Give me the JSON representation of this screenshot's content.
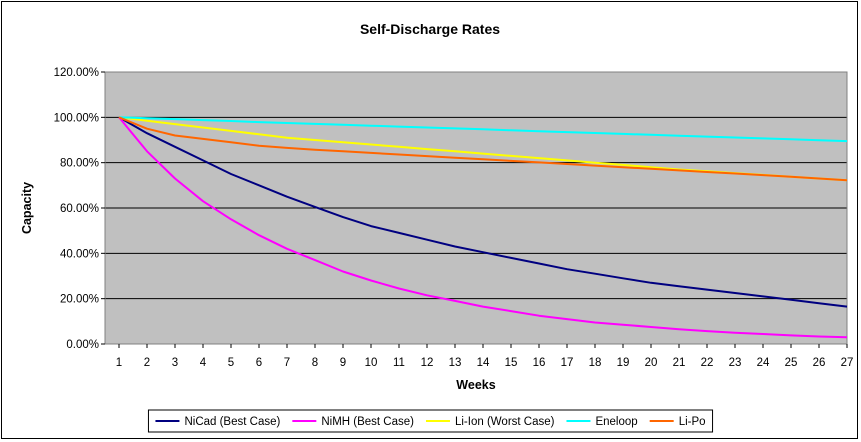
{
  "chart_data": {
    "type": "line",
    "title": "Self-Discharge Rates",
    "xlabel": "Weeks",
    "ylabel": "Capacity",
    "x": [
      1,
      2,
      3,
      4,
      5,
      6,
      7,
      8,
      9,
      10,
      11,
      12,
      13,
      14,
      15,
      16,
      17,
      18,
      19,
      20,
      21,
      22,
      23,
      24,
      25,
      26,
      27
    ],
    "ylim": [
      0,
      1.2
    ],
    "yticks": [
      0,
      0.2,
      0.4,
      0.6,
      0.8,
      1.0,
      1.2
    ],
    "ytick_labels": [
      "0.00%",
      "20.00%",
      "40.00%",
      "60.00%",
      "80.00%",
      "100.00%",
      "120.00%"
    ],
    "grid": "horizontal",
    "background": "#c0c0c0",
    "legend_position": "bottom",
    "series": [
      {
        "name": "NiCad (Best Case)",
        "color": "#000080",
        "values": [
          1.0,
          0.93,
          0.87,
          0.81,
          0.75,
          0.7,
          0.65,
          0.605,
          0.56,
          0.52,
          0.49,
          0.46,
          0.43,
          0.405,
          0.38,
          0.355,
          0.33,
          0.31,
          0.29,
          0.27,
          0.255,
          0.24,
          0.225,
          0.21,
          0.195,
          0.18,
          0.165
        ]
      },
      {
        "name": "NiMH (Best Case)",
        "color": "#ff00ff",
        "values": [
          1.0,
          0.85,
          0.73,
          0.63,
          0.55,
          0.48,
          0.42,
          0.37,
          0.32,
          0.28,
          0.245,
          0.215,
          0.19,
          0.165,
          0.145,
          0.125,
          0.11,
          0.095,
          0.085,
          0.075,
          0.065,
          0.057,
          0.05,
          0.044,
          0.038,
          0.033,
          0.03
        ]
      },
      {
        "name": "Li-Ion (Worst Case)",
        "color": "#ffff00",
        "values": [
          1.0,
          0.985,
          0.97,
          0.955,
          0.94,
          0.925,
          0.91,
          0.9,
          0.89,
          0.88,
          0.87,
          0.86,
          0.85,
          0.84,
          0.83,
          0.82,
          0.81,
          0.8,
          0.79,
          0.78,
          0.77,
          0.762,
          0.754,
          0.746,
          0.738,
          0.73,
          0.722
        ]
      },
      {
        "name": "Eneloop",
        "color": "#00ffff",
        "values": [
          1.0,
          0.996,
          0.992,
          0.988,
          0.984,
          0.979,
          0.975,
          0.971,
          0.967,
          0.963,
          0.959,
          0.955,
          0.951,
          0.947,
          0.943,
          0.939,
          0.935,
          0.931,
          0.927,
          0.923,
          0.919,
          0.915,
          0.911,
          0.907,
          0.903,
          0.899,
          0.895
        ]
      },
      {
        "name": "Li-Po",
        "color": "#ff6600",
        "values": [
          1.0,
          0.95,
          0.92,
          0.905,
          0.89,
          0.875,
          0.865,
          0.857,
          0.85,
          0.843,
          0.836,
          0.829,
          0.822,
          0.815,
          0.808,
          0.801,
          0.794,
          0.787,
          0.78,
          0.773,
          0.766,
          0.759,
          0.752,
          0.745,
          0.738,
          0.73,
          0.722
        ]
      }
    ]
  }
}
